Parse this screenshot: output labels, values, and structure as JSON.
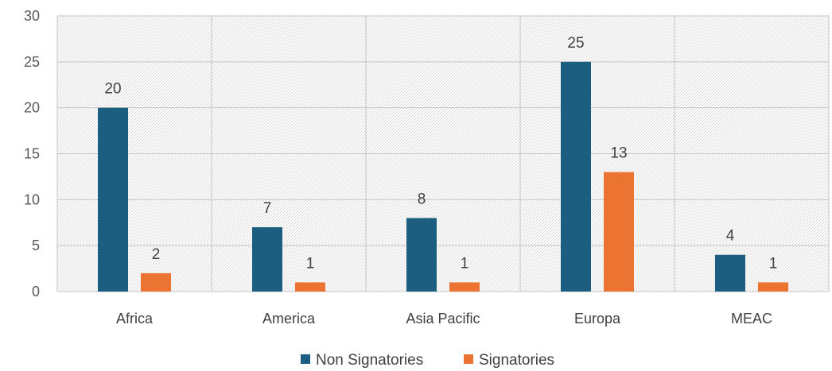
{
  "chart_data": {
    "type": "bar",
    "categories": [
      "Africa",
      "America",
      "Asia Pacific",
      "Europa",
      "MEAC"
    ],
    "series": [
      {
        "name": "Non Signatories",
        "values": [
          20,
          7,
          8,
          25,
          4
        ],
        "color": "#1b5e7f"
      },
      {
        "name": "Signatories",
        "values": [
          2,
          1,
          1,
          13,
          1
        ],
        "color": "#ec7432"
      }
    ],
    "yticks": [
      "0",
      "5",
      "10",
      "15",
      "20",
      "25",
      "30"
    ],
    "ylim": [
      0,
      30
    ],
    "grid": true,
    "plot_background": "hatched light gray",
    "legend_position": "bottom",
    "data_labels": true
  }
}
